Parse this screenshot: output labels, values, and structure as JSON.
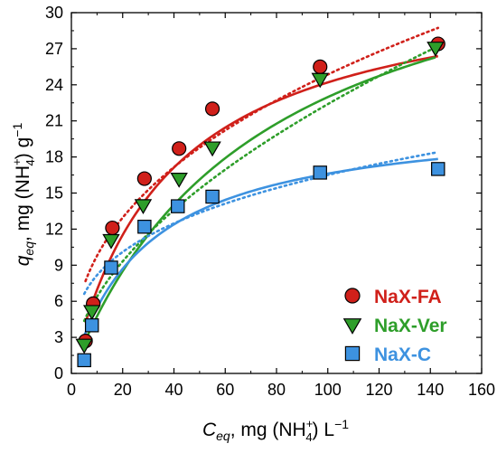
{
  "chart_data": {
    "type": "scatter",
    "xlabel": {
      "main": "C",
      "sub": "eq",
      "rest": ", mg (NH",
      "sub4": "4",
      "sup": "+",
      "end": ") L",
      "exp": "−1"
    },
    "ylabel": {
      "main": "q",
      "sub": "eq",
      "rest": ", mg (NH",
      "sub4": "4",
      "sup": "+",
      "end": ") g",
      "exp": "−1"
    },
    "xlim": [
      0,
      160
    ],
    "ylim": [
      0,
      30
    ],
    "xticks": [
      "0",
      "20",
      "40",
      "60",
      "80",
      "100",
      "120",
      "140",
      "160"
    ],
    "yticks": [
      "0",
      "3",
      "6",
      "9",
      "12",
      "15",
      "18",
      "21",
      "24",
      "27",
      "30"
    ],
    "grid": false,
    "legend_position": "bottom-right",
    "series": [
      {
        "name": "NaX-FA",
        "color": "#d0201a",
        "marker": "circle",
        "x": [
          5.5,
          8.5,
          16,
          28.5,
          42,
          55,
          97,
          143
        ],
        "y": [
          2.7,
          5.8,
          12.1,
          16.2,
          18.7,
          22,
          25.5,
          27.4
        ],
        "error": [
          0,
          0,
          0,
          0.4,
          0,
          0,
          0,
          0
        ],
        "fit_solid": {
          "model": "langmuir",
          "qmax": 33.4,
          "K": 0.0263
        },
        "fit_dotted": {
          "model": "freundlich",
          "Kf": 3.85,
          "n": 0.405
        }
      },
      {
        "name": "NaX-Ver",
        "color": "#2e9e2a",
        "marker": "triangle-down",
        "x": [
          5,
          8,
          15.5,
          28,
          42,
          55,
          97,
          142
        ],
        "y": [
          2.4,
          5.2,
          11.1,
          14,
          16.2,
          18.8,
          24.5,
          27.1
        ],
        "error": [
          0,
          0,
          0,
          0,
          0,
          0,
          0,
          0
        ],
        "fit_solid": {
          "model": "langmuir",
          "qmax": 40,
          "K": 0.0135
        },
        "fit_dotted": {
          "model": "freundlich",
          "Kf": 1.82,
          "n": 0.545
        }
      },
      {
        "name": "NaX-C",
        "color": "#3d92e0",
        "marker": "square",
        "x": [
          5,
          8,
          15.5,
          28.5,
          41.5,
          55,
          97,
          143
        ],
        "y": [
          1.1,
          4,
          8.8,
          12.2,
          13.9,
          14.7,
          16.7,
          17
        ],
        "error": [
          0,
          0,
          0,
          0,
          0,
          0,
          0,
          0
        ],
        "fit_solid": {
          "model": "langmuir",
          "qmax": 21.5,
          "K": 0.034
        },
        "fit_dotted": {
          "model": "freundlich",
          "Kf": 4.05,
          "n": 0.305
        }
      }
    ]
  }
}
